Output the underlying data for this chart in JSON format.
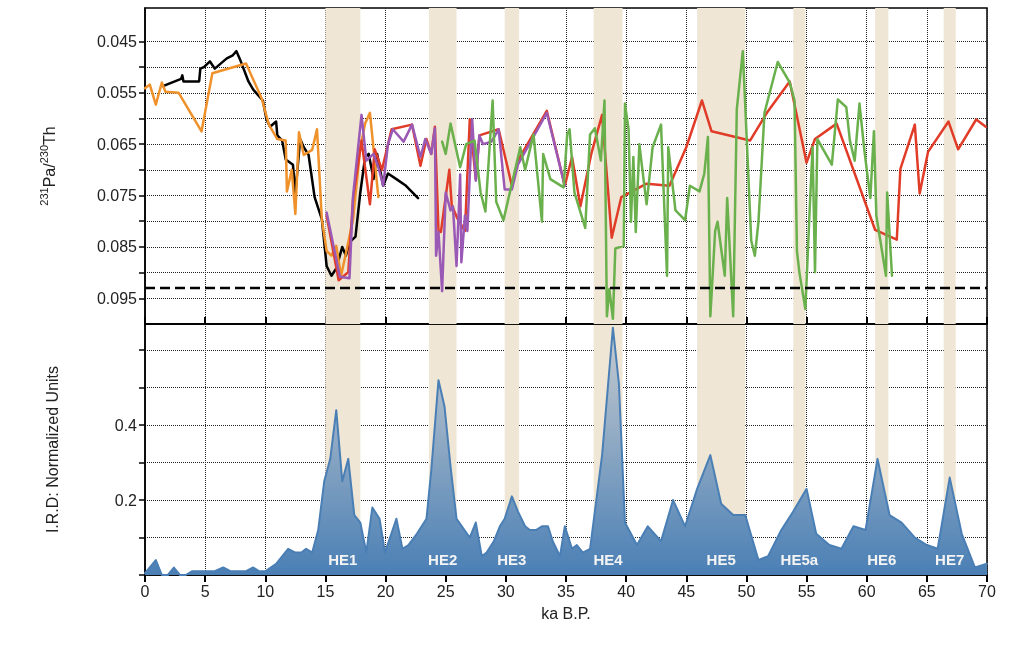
{
  "chart_data": [
    {
      "type": "line",
      "ylabel": "$^{231}$Pa/$^{230}$Th",
      "xlim": [
        0,
        70
      ],
      "xticks": [
        0,
        5,
        10,
        15,
        20,
        25,
        30,
        35,
        40,
        45,
        50,
        55,
        60,
        65,
        70
      ],
      "ylim": [
        0.1,
        0.0385
      ],
      "yticks": [
        0.045,
        {
          "value": 0.05,
          "label": null
        },
        0.055,
        {
          "value": 0.06,
          "label": null
        },
        0.065,
        {
          "value": 0.07,
          "label": null
        },
        0.075,
        {
          "value": 0.08,
          "label": null
        },
        0.085,
        {
          "value": 0.09,
          "label": null
        },
        0.095
      ],
      "grid": true,
      "marker": "none",
      "tick_labels": "y",
      "ref_lines": [
        {
          "axis": "y",
          "value": 0.093,
          "line_style": "dashed",
          "color": "#000000"
        }
      ],
      "bands": [
        {
          "axis": "x",
          "from": 15,
          "to": 17.9,
          "color": "#efe6d6"
        },
        {
          "axis": "x",
          "from": 23.6,
          "to": 25.9,
          "color": "#efe6d6"
        },
        {
          "axis": "x",
          "from": 29.9,
          "to": 31.1,
          "color": "#efe6d6"
        },
        {
          "axis": "x",
          "from": 37.3,
          "to": 39.7,
          "color": "#efe6d6"
        },
        {
          "axis": "x",
          "from": 45.9,
          "to": 49.9,
          "color": "#efe6d6"
        },
        {
          "axis": "x",
          "from": 53.9,
          "to": 54.9,
          "color": "#efe6d6"
        },
        {
          "axis": "x",
          "from": 60.7,
          "to": 61.8,
          "color": "#efe6d6"
        },
        {
          "axis": "x",
          "from": 66.4,
          "to": 67.4,
          "color": "#efe6d6"
        }
      ],
      "series": [
        {
          "color": "#000000",
          "x": [
            1.5,
            1.8,
            3.0,
            3.1,
            3.2,
            4.5,
            4.6,
            4.9,
            5.4,
            5.8,
            6.8,
            7.3,
            7.6,
            7.9,
            8.6,
            9.0,
            9.8,
            10.1,
            10.4,
            10.9,
            11.0,
            11.4,
            11.7,
            12.3,
            12.5,
            12.9,
            13.2,
            13.6,
            14.1,
            14.7,
            15.1,
            15.5,
            15.9,
            16.4,
            16.7,
            17.0,
            17.5,
            17.9,
            18.3,
            18.6,
            19.0,
            19.3,
            19.8,
            20.2,
            20.9,
            21.7,
            22.7
          ],
          "values": [
            0.0537,
            0.0534,
            0.0523,
            0.0516,
            0.0528,
            0.0528,
            0.0503,
            0.05,
            0.0489,
            0.0503,
            0.0483,
            0.0477,
            0.0469,
            0.0485,
            0.0528,
            0.0544,
            0.0565,
            0.0602,
            0.0616,
            0.0606,
            0.0633,
            0.0643,
            0.068,
            0.069,
            0.0746,
            0.064,
            0.0656,
            0.0671,
            0.0753,
            0.0796,
            0.0887,
            0.0906,
            0.0892,
            0.085,
            0.0867,
            0.0841,
            0.083,
            0.0744,
            0.0675,
            0.0669,
            0.0718,
            0.0669,
            0.0731,
            0.0707,
            0.0718,
            0.0731,
            0.0755
          ]
        },
        {
          "color": "#f0922b",
          "x": [
            0,
            0.4,
            0.9,
            1.4,
            1.7,
            2.8,
            4.7,
            5.6,
            8.4,
            9.7,
            10.3,
            11.0,
            11.7,
            11.8,
            12.2,
            12.5,
            12.8,
            13.2,
            13.9,
            14.3,
            14.7,
            15.1,
            15.5,
            15.9,
            16.3,
            16.9,
            17.3,
            17.9,
            18.3,
            18.7,
            19.4
          ],
          "values": [
            0.0541,
            0.0534,
            0.0573,
            0.053,
            0.0548,
            0.055,
            0.0625,
            0.0512,
            0.0493,
            0.0561,
            0.0612,
            0.064,
            0.0643,
            0.0742,
            0.07,
            0.0786,
            0.0627,
            0.0671,
            0.0661,
            0.0621,
            0.0796,
            0.0858,
            0.0867,
            0.0848,
            0.0906,
            0.0841,
            0.0796,
            0.0656,
            0.061,
            0.0589,
            0.0753
          ]
        },
        {
          "color": "#e03c28",
          "x": [
            15.1,
            16.1,
            16.9,
            17.3,
            18.0,
            18.7,
            19.1,
            19.7,
            20.5,
            22.2,
            22.9,
            23.4,
            23.8,
            24.1,
            24.4,
            24.6,
            25.3,
            25.5,
            26.0,
            26.6,
            27.0,
            27.5,
            27.8,
            29.4,
            30.5,
            31.0,
            33.4,
            34.9,
            35.5,
            36.2,
            37.1,
            38.0,
            38.8,
            39.6,
            41.7,
            43.6,
            45.0,
            46.3,
            47.1,
            50.3,
            51.7,
            53.6,
            55.0,
            55.7,
            57.5,
            60.7,
            62.5,
            62.8,
            64.0,
            64.4,
            65.1,
            66.8,
            67.6,
            69.1,
            69.9
          ],
          "values": [
            0.0789,
            0.0915,
            0.0899,
            0.0755,
            0.0643,
            0.0767,
            0.066,
            0.07,
            0.0621,
            0.0612,
            0.0692,
            0.064,
            0.0669,
            0.0616,
            0.0819,
            0.0821,
            0.07,
            0.0769,
            0.0796,
            0.0819,
            0.0602,
            0.0718,
            0.0633,
            0.0621,
            0.0731,
            0.0682,
            0.0585,
            0.0731,
            0.0675,
            0.0771,
            0.0669,
            0.0593,
            0.0832,
            0.0753,
            0.0727,
            0.0731,
            0.0656,
            0.0565,
            0.0625,
            0.0643,
            0.0589,
            0.0528,
            0.0686,
            0.064,
            0.061,
            0.0817,
            0.0836,
            0.0698,
            0.0612,
            0.0746,
            0.0665,
            0.0606,
            0.066,
            0.0602,
            0.0616
          ]
        },
        {
          "color": "#9b59b6",
          "x": [
            15.1,
            16.2,
            17.0,
            17.3,
            18.0,
            18.4,
            19.0,
            19.4,
            19.8,
            20.2,
            20.6,
            21.5,
            22.2,
            22.9,
            23.3,
            23.8,
            24.1,
            24.2,
            24.4,
            24.7,
            25.0,
            25.4,
            25.6,
            25.9,
            26.2,
            26.3,
            26.6,
            26.8,
            27.2,
            27.5,
            27.8,
            28.1,
            28.8,
            29.4,
            29.9,
            30.5,
            31.0,
            33.4,
            34.9
          ],
          "values": [
            0.0783,
            0.0908,
            0.0911,
            0.075,
            0.0593,
            0.0682,
            0.0669,
            0.0695,
            0.0731,
            0.065,
            0.0621,
            0.0645,
            0.0612,
            0.0675,
            0.064,
            0.0669,
            0.0619,
            0.0867,
            0.0821,
            0.0936,
            0.0744,
            0.0779,
            0.0771,
            0.0887,
            0.0709,
            0.088,
            0.0789,
            0.0819,
            0.0602,
            0.0721,
            0.0633,
            0.065,
            0.0645,
            0.0621,
            0.0738,
            0.0738,
            0.069,
            0.0589,
            0.0731
          ]
        },
        {
          "color": "#6ab04c",
          "x": [
            24.7,
            25.0,
            25.4,
            26.2,
            26.7,
            27.4,
            27.9,
            28.3,
            28.9,
            29.2,
            29.8,
            31.2,
            31.6,
            32.3,
            33.0,
            33.1,
            33.7,
            34.8,
            35.1,
            35.3,
            35.7,
            36.6,
            37.0,
            37.4,
            37.9,
            38.2,
            38.4,
            38.6,
            38.9,
            39.1,
            39.8,
            39.9,
            40.2,
            40.4,
            40.6,
            40.8,
            41.1,
            41.3,
            41.7,
            42.2,
            42.9,
            43.4,
            43.5,
            44.1,
            44.9,
            45.3,
            46.1,
            46.5,
            46.8,
            47.0,
            47.4,
            47.6,
            48.2,
            48.4,
            48.9,
            49.2,
            49.7,
            50.4,
            50.7,
            51.0,
            51.5,
            52.6,
            53.6,
            54.0,
            54.2,
            54.4,
            54.9,
            55.3,
            55.5,
            55.7,
            55.9,
            57.1,
            57.6,
            58.3,
            58.6,
            59.0,
            59.4,
            59.8,
            60.3,
            60.6,
            60.8,
            61.6,
            61.7,
            62.1
          ],
          "values": [
            0.0645,
            0.0669,
            0.061,
            0.0695,
            0.065,
            0.0643,
            0.0744,
            0.0781,
            0.0565,
            0.0762,
            0.0798,
            0.0656,
            0.07,
            0.0631,
            0.0801,
            0.0669,
            0.0718,
            0.0734,
            0.0631,
            0.0621,
            0.0744,
            0.0813,
            0.0631,
            0.0619,
            0.0682,
            0.0565,
            0.0985,
            0.0932,
            0.099,
            0.0853,
            0.0848,
            0.0571,
            0.0621,
            0.0801,
            0.0675,
            0.0821,
            0.065,
            0.069,
            0.0767,
            0.0656,
            0.0612,
            0.0906,
            0.0656,
            0.0779,
            0.0798,
            0.0731,
            0.0742,
            0.0707,
            0.0636,
            0.0985,
            0.0819,
            0.0801,
            0.0906,
            0.0755,
            0.0985,
            0.0582,
            0.0469,
            0.0838,
            0.0867,
            0.0801,
            0.0589,
            0.049,
            0.053,
            0.0565,
            0.0858,
            0.0899,
            0.0971,
            0.0755,
            0.0656,
            0.0899,
            0.064,
            0.069,
            0.0563,
            0.0578,
            0.0643,
            0.0682,
            0.0571,
            0.0661,
            0.0755,
            0.0625,
            0.0789,
            0.0906,
            0.0744,
            0.0906
          ]
        }
      ]
    },
    {
      "type": "area",
      "ylabel": "I.R.D: Normalized Units",
      "xlabel": "ka B.P.",
      "xlim": [
        0,
        70
      ],
      "xticks": [
        0,
        5,
        10,
        15,
        20,
        25,
        30,
        35,
        40,
        45,
        50,
        55,
        60,
        65,
        70
      ],
      "ylim": [
        0,
        0.67
      ],
      "yticks": [
        {
          "value": 0,
          "label": null
        },
        {
          "value": 0.1,
          "label": null
        },
        0.2,
        {
          "value": 0.3,
          "label": null
        },
        0.4,
        {
          "value": 0.5,
          "label": null
        },
        {
          "value": 0.6,
          "label": null
        }
      ],
      "grid": true,
      "marker": "none",
      "bands": [
        {
          "axis": "x",
          "from": 15,
          "to": 17.9,
          "label": "HE1",
          "color": "#efe6d6"
        },
        {
          "axis": "x",
          "from": 23.6,
          "to": 25.9,
          "label": "HE2",
          "color": "#efe6d6"
        },
        {
          "axis": "x",
          "from": 29.9,
          "to": 31.1,
          "label": "HE3",
          "color": "#efe6d6"
        },
        {
          "axis": "x",
          "from": 37.3,
          "to": 39.7,
          "label": "HE4",
          "color": "#efe6d6"
        },
        {
          "axis": "x",
          "from": 45.9,
          "to": 49.9,
          "label": "HE5",
          "color": "#efe6d6"
        },
        {
          "axis": "x",
          "from": 53.9,
          "to": 54.9,
          "label": "HE5a",
          "color": "#efe6d6"
        },
        {
          "axis": "x",
          "from": 60.7,
          "to": 61.8,
          "label": "HE6",
          "color": "#efe6d6"
        },
        {
          "axis": "x",
          "from": 66.4,
          "to": 67.4,
          "label": "HE7",
          "color": "#efe6d6"
        }
      ],
      "series": [
        {
          "color": "#4a7fb5",
          "x": [
            0,
            0.9,
            1.4,
            1.9,
            2.4,
            2.9,
            3.4,
            3.9,
            5.8,
            6.5,
            7.1,
            8.4,
            9.0,
            9.5,
            10.0,
            10.9,
            11.9,
            12.5,
            13.0,
            13.4,
            13.9,
            14.4,
            14.9,
            15.4,
            15.9,
            16.4,
            16.9,
            17.4,
            17.9,
            18.4,
            18.9,
            19.5,
            19.95,
            20.9,
            21.4,
            21.9,
            22.6,
            23.4,
            23.8,
            24.4,
            24.9,
            25.4,
            25.9,
            27.0,
            27.5,
            28.0,
            28.4,
            29.0,
            29.5,
            29.9,
            30.5,
            31.0,
            31.6,
            32.0,
            32.5,
            33.0,
            33.5,
            33.9,
            34.5,
            34.9,
            35.5,
            35.9,
            36.4,
            37.0,
            37.4,
            38.0,
            38.9,
            39.4,
            39.9,
            40.9,
            41.8,
            42.9,
            43.9,
            44.9,
            45.9,
            47.0,
            47.9,
            48.9,
            49.9,
            51.0,
            51.8,
            52.9,
            53.9,
            55.0,
            55.8,
            56.9,
            57.9,
            58.9,
            59.9,
            60.9,
            61.9,
            62.9,
            64.0,
            65.0,
            65.9,
            66.9,
            67.9,
            69.0,
            70
          ],
          "values": [
            0.005,
            0.04,
            0,
            0,
            0.02,
            0,
            0,
            0.01,
            0.01,
            0.02,
            0.01,
            0.01,
            0.02,
            0.01,
            0.01,
            0.03,
            0.07,
            0.06,
            0.06,
            0.07,
            0.06,
            0.12,
            0.25,
            0.31,
            0.44,
            0.25,
            0.31,
            0.16,
            0.14,
            0.06,
            0.18,
            0.15,
            0.06,
            0.15,
            0.07,
            0.08,
            0.11,
            0.15,
            0.28,
            0.52,
            0.45,
            0.29,
            0.15,
            0.1,
            0.14,
            0.05,
            0.06,
            0.09,
            0.13,
            0.15,
            0.21,
            0.17,
            0.13,
            0.12,
            0.12,
            0.13,
            0.13,
            0.09,
            0.05,
            0.13,
            0.07,
            0.08,
            0.06,
            0.07,
            0.17,
            0.32,
            0.66,
            0.51,
            0.14,
            0.08,
            0.13,
            0.09,
            0.2,
            0.13,
            0.23,
            0.32,
            0.19,
            0.16,
            0.16,
            0.04,
            0.05,
            0.12,
            0.17,
            0.23,
            0.11,
            0.08,
            0.07,
            0.13,
            0.12,
            0.31,
            0.16,
            0.14,
            0.1,
            0.08,
            0.07,
            0.26,
            0.11,
            0.02,
            0.03
          ]
        }
      ]
    }
  ]
}
